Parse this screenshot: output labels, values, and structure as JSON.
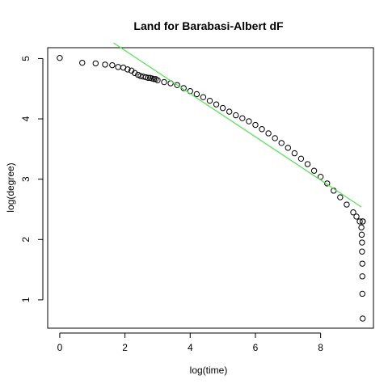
{
  "chart_data": {
    "type": "scatter",
    "title": "Land for Barabasi-Albert dF",
    "xlabel": "log(time)",
    "ylabel": "log(degree)",
    "xlim": [
      -0.37,
      9.62
    ],
    "ylim": [
      0.53,
      5.18
    ],
    "xticks": [
      "0",
      "2",
      "4",
      "6",
      "8"
    ],
    "yticks": [
      "1",
      "2",
      "3",
      "4",
      "5"
    ],
    "grid": false,
    "legend": "none",
    "point_color": "#000000",
    "fit_color": "#55e055",
    "fit_line": {
      "intercept": 5.85,
      "slope": -0.358,
      "x_range": [
        1.65,
        9.25
      ]
    },
    "series": [
      {
        "x": [
          0.0,
          0.69,
          1.1,
          1.39,
          1.61,
          1.79,
          1.95,
          2.08,
          2.2,
          2.3,
          2.4,
          2.48,
          2.56,
          2.64,
          2.71,
          2.77,
          2.83,
          2.89,
          2.94,
          3.0,
          3.2,
          3.4,
          3.6,
          3.8,
          4.0,
          4.2,
          4.4,
          4.6,
          4.8,
          5.0,
          5.2,
          5.4,
          5.6,
          5.8,
          6.0,
          6.2,
          6.4,
          6.6,
          6.8,
          7.0,
          7.2,
          7.4,
          7.6,
          7.8,
          8.0,
          8.2,
          8.4,
          8.6,
          8.8,
          9.0,
          9.1,
          9.2,
          9.25,
          9.26,
          9.27,
          9.27,
          9.28,
          9.28,
          9.28,
          9.29,
          9.29,
          9.29
        ],
        "y": [
          5.01,
          4.93,
          4.92,
          4.9,
          4.89,
          4.86,
          4.85,
          4.82,
          4.8,
          4.76,
          4.73,
          4.71,
          4.7,
          4.69,
          4.68,
          4.68,
          4.67,
          4.66,
          4.66,
          4.64,
          4.61,
          4.59,
          4.56,
          4.51,
          4.46,
          4.41,
          4.36,
          4.3,
          4.24,
          4.18,
          4.12,
          4.06,
          4.01,
          3.96,
          3.9,
          3.83,
          3.76,
          3.68,
          3.6,
          3.52,
          3.43,
          3.34,
          3.25,
          3.14,
          3.04,
          2.93,
          2.81,
          2.7,
          2.58,
          2.45,
          2.38,
          2.3,
          2.2,
          2.08,
          1.95,
          1.8,
          1.6,
          1.39,
          1.1,
          0.69,
          2.3,
          2.3
        ]
      }
    ]
  }
}
